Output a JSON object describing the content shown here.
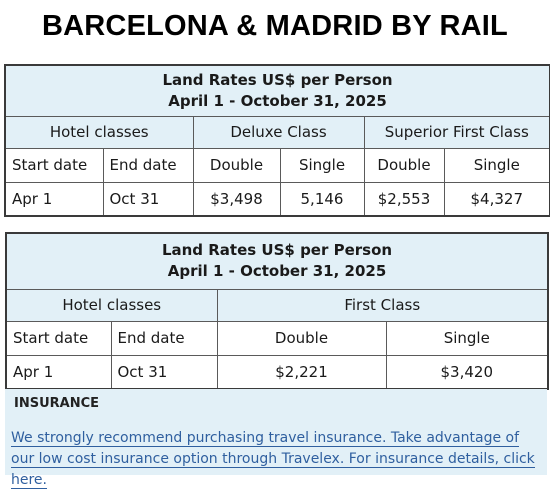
{
  "page_title": "BARCELONA & MADRID BY RAIL",
  "table1": {
    "heading_line1": "Land Rates US$ per Person",
    "heading_line2": "April 1 - October 31, 2025",
    "hotel_classes": "Hotel classes",
    "class_a": "Deluxe Class",
    "class_b": "Superior First Class",
    "col_start": "Start date",
    "col_end": "End date",
    "col_double_a": "Double",
    "col_single_a": "Single",
    "col_double_b": "Double",
    "col_single_b": "Single",
    "row": {
      "start": "Apr 1",
      "end": "Oct 31",
      "double_a": "$3,498",
      "single_a": "5,146",
      "double_b": "$2,553",
      "single_b": "$4,327"
    }
  },
  "table2": {
    "heading_line1": "Land Rates US$ per Person",
    "heading_line2": "April 1 - October 31, 2025",
    "hotel_classes": "Hotel classes",
    "class_a": "First Class",
    "col_start": "Start date",
    "col_end": "End date",
    "col_double": "Double",
    "col_single": "Single",
    "row": {
      "start": "Apr 1",
      "end": "Oct 31",
      "double": "$2,221",
      "single": "$3,420"
    }
  },
  "insurance": {
    "title": "INSURANCE",
    "text": "We strongly recommend purchasing travel insurance. Take advantage of our low cost insurance option through Travelex. For insurance details, click here."
  },
  "colors": {
    "header_bg": "#e2f0f7",
    "link": "#2f5f9f"
  }
}
